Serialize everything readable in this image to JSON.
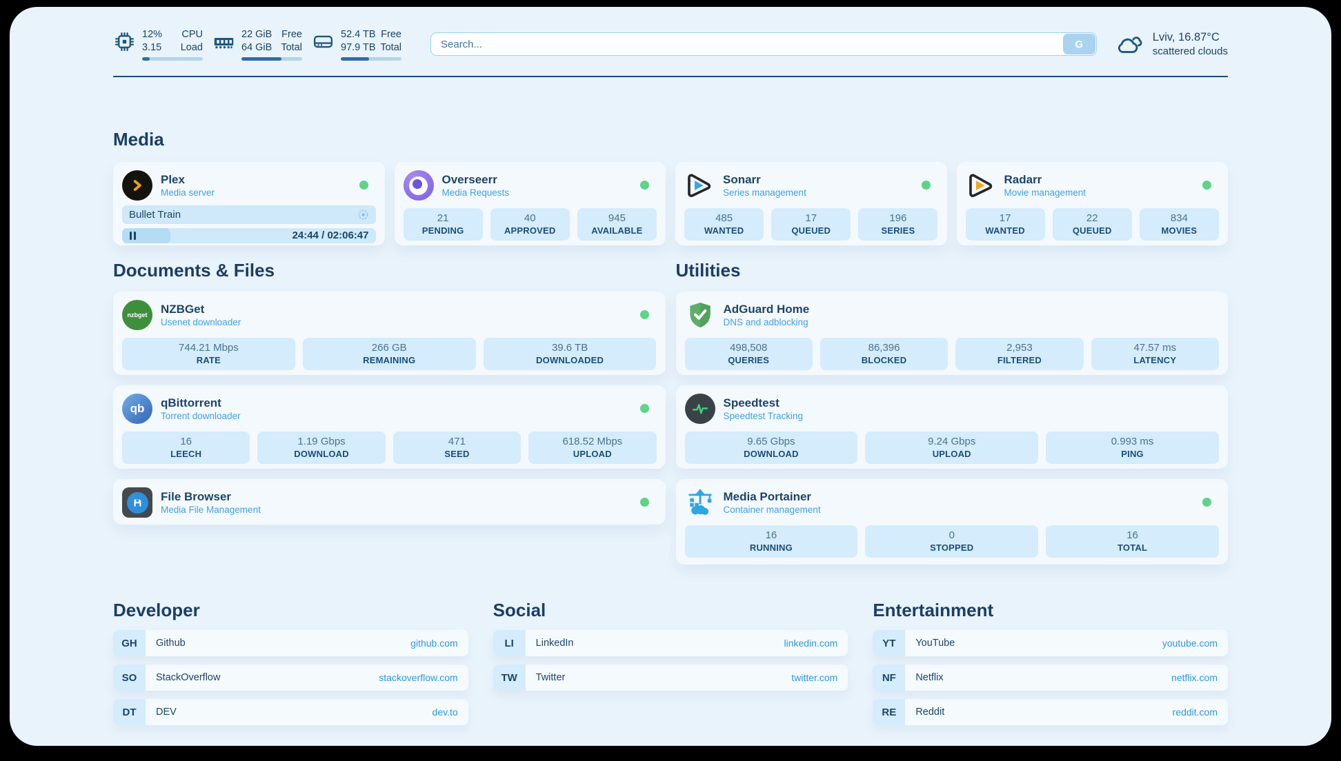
{
  "header": {
    "system_widgets": [
      {
        "icon": "cpu-icon",
        "values": [
          "12%",
          "3.15"
        ],
        "labels": [
          "CPU",
          "Load"
        ],
        "progress_pct": "12%"
      },
      {
        "icon": "ram-icon",
        "values": [
          "22 GiB",
          "64 GiB"
        ],
        "labels": [
          "Free",
          "Total"
        ],
        "progress_pct": "66%"
      },
      {
        "icon": "disk-icon",
        "values": [
          "52.4 TB",
          "97.9 TB"
        ],
        "labels": [
          "Free",
          "Total"
        ],
        "progress_pct": "47%"
      }
    ],
    "search": {
      "placeholder": "Search...",
      "button_label": "G"
    },
    "weather": {
      "location_temp": "Lviv, 16.87°C",
      "condition": "scattered clouds"
    }
  },
  "colors": {
    "page_bg": "#e9f3fb",
    "accent_navy": "#1c4468",
    "subtitle_blue": "#41a0e0",
    "link_blue": "#2e96e2",
    "stat_box_bg": "#d4ecfb",
    "online_green": "#5ed389",
    "progress_fill": "#2e6e9e"
  },
  "sections": {
    "media": {
      "title": "Media",
      "apps": [
        {
          "name": "Plex",
          "desc": "Media server",
          "online": true,
          "now_playing": {
            "title": "Bullet Train",
            "time": "24:44 / 02:06:47",
            "progress_pct": "19%"
          }
        },
        {
          "name": "Overseerr",
          "desc": "Media Requests",
          "online": true,
          "stats": [
            {
              "value": "21",
              "label": "PENDING"
            },
            {
              "value": "40",
              "label": "APPROVED"
            },
            {
              "value": "945",
              "label": "AVAILABLE"
            }
          ]
        },
        {
          "name": "Sonarr",
          "desc": "Series management",
          "online": true,
          "stats": [
            {
              "value": "485",
              "label": "WANTED"
            },
            {
              "value": "17",
              "label": "QUEUED"
            },
            {
              "value": "196",
              "label": "SERIES"
            }
          ]
        },
        {
          "name": "Radarr",
          "desc": "Movie management",
          "online": true,
          "stats": [
            {
              "value": "17",
              "label": "WANTED"
            },
            {
              "value": "22",
              "label": "QUEUED"
            },
            {
              "value": "834",
              "label": "MOVIES"
            }
          ]
        }
      ]
    },
    "documents": {
      "title": "Documents & Files",
      "apps": [
        {
          "name": "NZBGet",
          "desc": "Usenet downloader",
          "online": true,
          "icon_text": "nzbget",
          "stats": [
            {
              "value": "744.21 Mbps",
              "label": "RATE"
            },
            {
              "value": "266 GB",
              "label": "REMAINING"
            },
            {
              "value": "39.6 TB",
              "label": "DOWNLOADED"
            }
          ]
        },
        {
          "name": "qBittorrent",
          "desc": "Torrent downloader",
          "online": true,
          "icon_text": "qb",
          "stats": [
            {
              "value": "16",
              "label": "LEECH"
            },
            {
              "value": "1.19 Gbps",
              "label": "DOWNLOAD"
            },
            {
              "value": "471",
              "label": "SEED"
            },
            {
              "value": "618.52 Mbps",
              "label": "UPLOAD"
            }
          ]
        },
        {
          "name": "File Browser",
          "desc": "Media File Management",
          "online": true
        }
      ]
    },
    "utilities": {
      "title": "Utilities",
      "apps": [
        {
          "name": "AdGuard Home",
          "desc": "DNS and adblocking",
          "stats": [
            {
              "value": "498,508",
              "label": "QUERIES"
            },
            {
              "value": "86,396",
              "label": "BLOCKED"
            },
            {
              "value": "2,953",
              "label": "FILTERED"
            },
            {
              "value": "47.57 ms",
              "label": "LATENCY"
            }
          ]
        },
        {
          "name": "Speedtest",
          "desc": "Speedtest Tracking",
          "stats": [
            {
              "value": "9.65 Gbps",
              "label": "DOWNLOAD"
            },
            {
              "value": "9.24 Gbps",
              "label": "UPLOAD"
            },
            {
              "value": "0.993 ms",
              "label": "PING"
            }
          ]
        },
        {
          "name": "Media Portainer",
          "desc": "Container management",
          "online": true,
          "stats": [
            {
              "value": "16",
              "label": "RUNNING"
            },
            {
              "value": "0",
              "label": "STOPPED"
            },
            {
              "value": "16",
              "label": "TOTAL"
            }
          ]
        }
      ]
    },
    "bookmarks": [
      {
        "title": "Developer",
        "links": [
          {
            "abbr": "GH",
            "name": "Github",
            "url": "github.com"
          },
          {
            "abbr": "SO",
            "name": "StackOverflow",
            "url": "stackoverflow.com"
          },
          {
            "abbr": "DT",
            "name": "DEV",
            "url": "dev.to"
          }
        ]
      },
      {
        "title": "Social",
        "links": [
          {
            "abbr": "LI",
            "name": "LinkedIn",
            "url": "linkedin.com"
          },
          {
            "abbr": "TW",
            "name": "Twitter",
            "url": "twitter.com"
          }
        ]
      },
      {
        "title": "Entertainment",
        "links": [
          {
            "abbr": "YT",
            "name": "YouTube",
            "url": "youtube.com"
          },
          {
            "abbr": "NF",
            "name": "Netflix",
            "url": "netflix.com"
          },
          {
            "abbr": "RE",
            "name": "Reddit",
            "url": "reddit.com"
          }
        ]
      }
    ]
  }
}
